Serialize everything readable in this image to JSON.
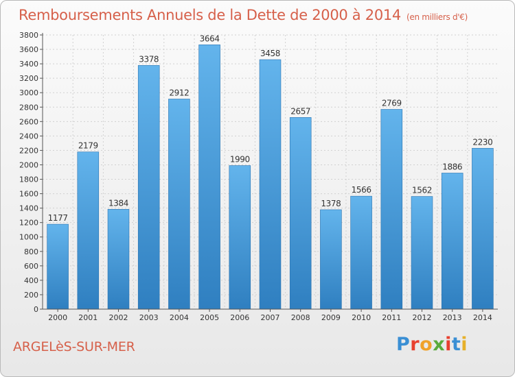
{
  "title": "Remboursements Annuels de la Dette de 2000 à 2014",
  "subtitle": "(en milliers d'€)",
  "commune": "ARGELèS-SUR-MER",
  "brand": {
    "letters": [
      "P",
      "r",
      "o",
      "x",
      "i",
      "t",
      "i"
    ],
    "colors": [
      "#3a8fd4",
      "#e8402f",
      "#f0a22a",
      "#5aab3c",
      "#e8402f",
      "#3a8fd4",
      "#e6b02a"
    ]
  },
  "colors": {
    "accent": "#d6604a",
    "bar_light": "#63b4ec",
    "bar_dark": "#2f7fc0",
    "grid": "#d0d0d0",
    "axis_text": "#333333"
  },
  "chart_data": {
    "type": "bar",
    "categories": [
      "2000",
      "2001",
      "2002",
      "2003",
      "2004",
      "2005",
      "2006",
      "2007",
      "2008",
      "2009",
      "2010",
      "2011",
      "2012",
      "2013",
      "2014"
    ],
    "values": [
      1177,
      2179,
      1384,
      3378,
      2912,
      3664,
      1990,
      3458,
      2657,
      1378,
      1566,
      2769,
      1562,
      1886,
      2230
    ],
    "value_labels": [
      "1177",
      "2179",
      "1384",
      "3378",
      "2912",
      "3664",
      "1990",
      "3458",
      "2657",
      "1378",
      "1566",
      "2769",
      "1562",
      "1886",
      "2230"
    ],
    "yticks": [
      "0",
      "200",
      "400",
      "600",
      "800",
      "1000",
      "1200",
      "1400",
      "1600",
      "1800",
      "2000",
      "2200",
      "2400",
      "2600",
      "2800",
      "3000",
      "3200",
      "3400",
      "3600",
      "3800"
    ],
    "ylim": [
      0,
      3800
    ],
    "ytick_step": 200,
    "grid": true
  }
}
